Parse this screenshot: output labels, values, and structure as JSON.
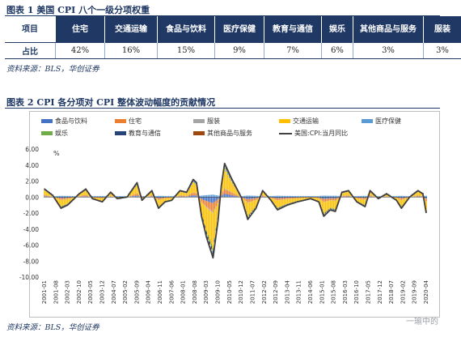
{
  "table_title": "图表 1   美国 CPI 八个一级分项权重",
  "chart_title": "图表 2   CPI 各分项对 CPI 整体波动幅度的贡献情况",
  "source_top": "资料来源：BLS，华创证券",
  "source_bottom": "资料来源：BLS，华创证券",
  "watermark": "一瑜中的",
  "weights_table": {
    "header_label": "项目",
    "row_label": "占比",
    "items": [
      {
        "name": "住宅",
        "weight": "42%"
      },
      {
        "name": "交通运输",
        "weight": "16%"
      },
      {
        "name": "食品与饮料",
        "weight": "15%"
      },
      {
        "name": "医疗保健",
        "weight": "9%"
      },
      {
        "name": "教育与通信",
        "weight": "7%"
      },
      {
        "name": "娱乐",
        "weight": "6%"
      },
      {
        "name": "其他商品与服务",
        "weight": "3%"
      },
      {
        "name": "服装",
        "weight": "3%"
      }
    ]
  },
  "chart_data": {
    "type": "bar",
    "stacked": true,
    "unit": "%",
    "ylim": [
      -10,
      6
    ],
    "yticks": [
      "6.00",
      "4.00",
      "2.00",
      "0.00",
      "-2.00",
      "-4.00",
      "-6.00",
      "-8.00",
      "-10.00"
    ],
    "start_month": "2001-01",
    "end_month": "2020-04",
    "x_tick_labels": [
      "2001-01",
      "2001-08",
      "2002-03",
      "2002-10",
      "2003-05",
      "2003-12",
      "2004-07",
      "2005-02",
      "2005-09",
      "2006-04",
      "2006-11",
      "2007-06",
      "2008-01",
      "2008-08",
      "2009-03",
      "2009-10",
      "2010-05",
      "2010-12",
      "2011-07",
      "2012-02",
      "2012-09",
      "2013-04",
      "2013-11",
      "2014-06",
      "2015-01",
      "2015-08",
      "2016-03",
      "2016-10",
      "2017-05",
      "2017-12",
      "2018-07",
      "2019-02",
      "2019-09",
      "2020-04"
    ],
    "legend_position": "top",
    "series": [
      {
        "name": "食品与饮料",
        "color": "#4472c4"
      },
      {
        "name": "住宅",
        "color": "#ed7d31"
      },
      {
        "name": "服装",
        "color": "#a5a5a5"
      },
      {
        "name": "交通运输",
        "color": "#ffc000"
      },
      {
        "name": "医疗保健",
        "color": "#5b9bd5"
      },
      {
        "name": "娱乐",
        "color": "#70ad47"
      },
      {
        "name": "教育与通信",
        "color": "#264478"
      },
      {
        "name": "其他商品与服务",
        "color": "#9e480e"
      },
      {
        "name": "美国:CPI:当月同比",
        "color": "#404040",
        "type": "line"
      }
    ],
    "cpi_line_anchors": [
      [
        "2001-01",
        1.0
      ],
      [
        "2001-06",
        0.2
      ],
      [
        "2001-11",
        -1.4
      ],
      [
        "2002-03",
        -1.0
      ],
      [
        "2002-10",
        0.4
      ],
      [
        "2003-02",
        1.0
      ],
      [
        "2003-06",
        -0.2
      ],
      [
        "2003-12",
        -0.6
      ],
      [
        "2004-05",
        0.6
      ],
      [
        "2004-09",
        -0.2
      ],
      [
        "2005-03",
        0.0
      ],
      [
        "2005-09",
        1.8
      ],
      [
        "2005-12",
        -0.4
      ],
      [
        "2006-06",
        0.8
      ],
      [
        "2006-10",
        -1.4
      ],
      [
        "2007-02",
        -0.6
      ],
      [
        "2007-06",
        -0.4
      ],
      [
        "2007-11",
        0.8
      ],
      [
        "2008-03",
        0.6
      ],
      [
        "2008-07",
        2.2
      ],
      [
        "2008-09",
        1.8
      ],
      [
        "2008-12",
        -2.4
      ],
      [
        "2009-03",
        -5.0
      ],
      [
        "2009-07",
        -7.6
      ],
      [
        "2009-10",
        -3.0
      ],
      [
        "2009-12",
        1.4
      ],
      [
        "2010-02",
        4.2
      ],
      [
        "2010-06",
        2.4
      ],
      [
        "2010-12",
        0.0
      ],
      [
        "2011-04",
        -2.8
      ],
      [
        "2011-09",
        -1.4
      ],
      [
        "2012-01",
        0.8
      ],
      [
        "2012-06",
        -0.4
      ],
      [
        "2012-10",
        -1.6
      ],
      [
        "2013-04",
        -1.0
      ],
      [
        "2013-10",
        -0.6
      ],
      [
        "2014-06",
        -0.2
      ],
      [
        "2014-11",
        -0.6
      ],
      [
        "2015-02",
        -2.4
      ],
      [
        "2015-06",
        -1.6
      ],
      [
        "2015-09",
        -1.8
      ],
      [
        "2016-01",
        0.6
      ],
      [
        "2016-05",
        0.8
      ],
      [
        "2016-10",
        -0.6
      ],
      [
        "2017-03",
        -1.2
      ],
      [
        "2017-06",
        0.8
      ],
      [
        "2017-11",
        -0.2
      ],
      [
        "2018-04",
        0.4
      ],
      [
        "2018-10",
        -0.4
      ],
      [
        "2019-01",
        -1.4
      ],
      [
        "2019-06",
        0.0
      ],
      [
        "2019-11",
        0.8
      ],
      [
        "2020-02",
        0.4
      ],
      [
        "2020-04",
        -2.0
      ]
    ]
  }
}
